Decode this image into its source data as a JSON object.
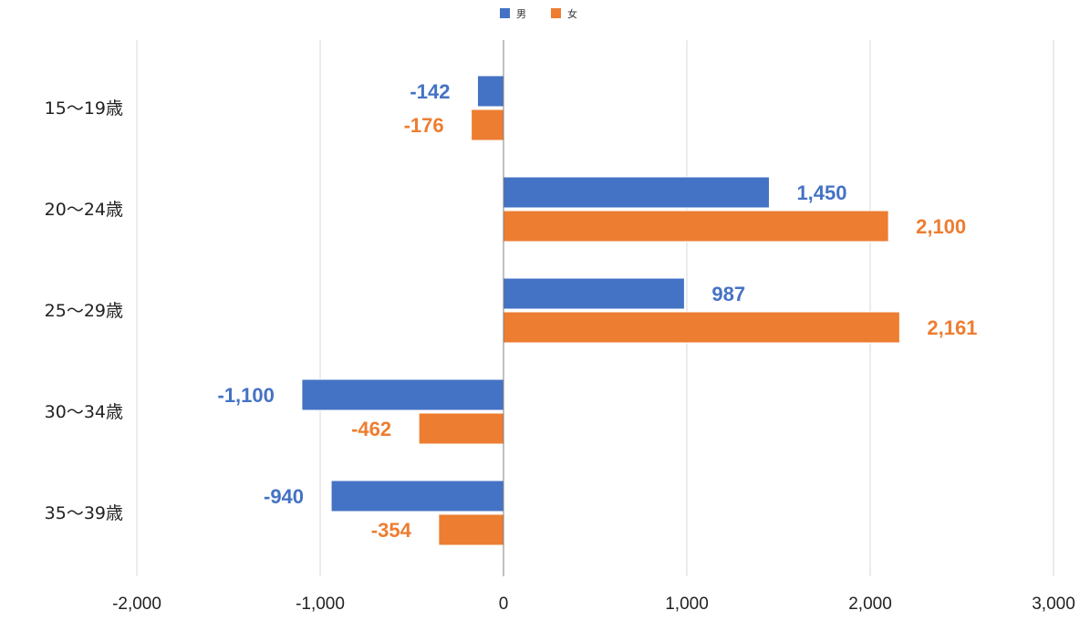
{
  "chart_data": {
    "type": "bar",
    "orientation": "horizontal",
    "categories": [
      "15〜19歳",
      "20〜24歳",
      "25〜29歳",
      "30〜34歳",
      "35〜39歳"
    ],
    "series": [
      {
        "name": "男",
        "color": "#4472C4",
        "values": [
          -142,
          1450,
          987,
          -1100,
          -940
        ],
        "labels": [
          "-142",
          "1,450",
          "987",
          "-1,100",
          "-940"
        ]
      },
      {
        "name": "女",
        "color": "#ED7D31",
        "values": [
          -176,
          2100,
          2161,
          -462,
          -354
        ],
        "labels": [
          "-176",
          "2,100",
          "2,161",
          "-462",
          "-354"
        ]
      }
    ],
    "xlim": [
      -2000,
      3000
    ],
    "xticks": [
      -2000,
      -1000,
      0,
      1000,
      2000,
      3000
    ],
    "xtick_labels": [
      "-2,000",
      "-1,000",
      "0",
      "1,000",
      "2,000",
      "3,000"
    ],
    "grid": "vertical",
    "legend_position": "top-center",
    "data_labels": true
  }
}
